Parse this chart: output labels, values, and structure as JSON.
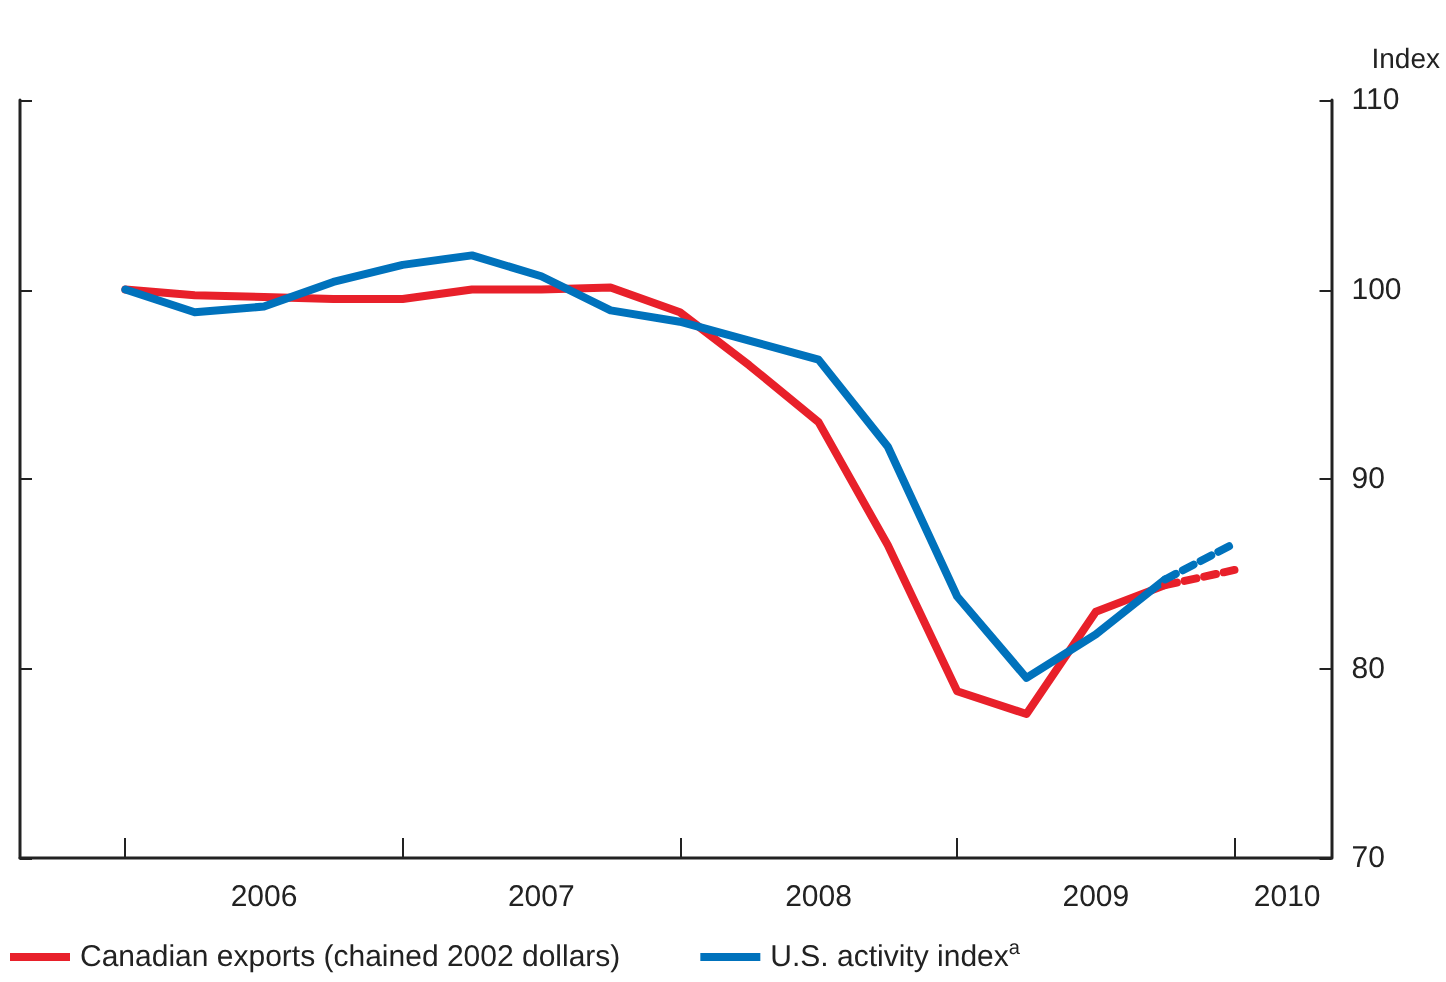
{
  "chart_data": {
    "type": "line",
    "ylabel": "Index",
    "x": [
      2006,
      2006.25,
      2006.5,
      2006.75,
      2007,
      2007.25,
      2007.5,
      2007.75,
      2008,
      2008.25,
      2008.5,
      2008.75,
      2009,
      2009.25,
      2009.5,
      2009.75,
      2010
    ],
    "series": [
      {
        "name": "Canadian exports (chained 2002 dollars)",
        "color": "#e8202a",
        "line_style": "solid",
        "values": [
          100,
          99.7,
          99.6,
          99.5,
          99.5,
          100,
          100,
          100.1,
          98.8,
          96,
          93,
          86.5,
          78.8,
          77.6,
          83,
          84.4,
          null
        ]
      },
      {
        "name": "U.S. activity index$^{a}$",
        "color": "#0072bc",
        "line_style": "solid",
        "values": [
          100,
          98.8,
          99.1,
          100.4,
          101.3,
          101.8,
          100.7,
          98.9,
          98.3,
          97.3,
          96.3,
          91.7,
          83.8,
          79.5,
          81.8,
          84.7,
          null
        ]
      },
      {
        "color": "#e8202a",
        "line_style": "dashed",
        "values": [
          null,
          null,
          null,
          null,
          null,
          null,
          null,
          null,
          null,
          null,
          null,
          null,
          null,
          null,
          null,
          84.4,
          85.2
        ]
      },
      {
        "color": "#0072bc",
        "line_style": "dashed",
        "values": [
          null,
          null,
          null,
          null,
          null,
          null,
          null,
          null,
          null,
          null,
          null,
          null,
          null,
          null,
          null,
          84.7,
          86.6
        ]
      }
    ],
    "xlim": [
      2005.62,
      2010.35
    ],
    "xticks": [
      {
        "value": 2006,
        "label": null
      },
      {
        "value": 2006.5,
        "label": "2006"
      },
      {
        "value": 2007,
        "label": null
      },
      {
        "value": 2007.5,
        "label": "2007"
      },
      {
        "value": 2008,
        "label": null
      },
      {
        "value": 2008.5,
        "label": "2008"
      },
      {
        "value": 2009,
        "label": null
      },
      {
        "value": 2009.5,
        "label": "2009"
      },
      {
        "value": 2010,
        "label": null
      },
      {
        "value": 2010.19,
        "label": "2010"
      }
    ],
    "ylim": [
      70,
      110
    ],
    "yticks": [
      70,
      80,
      90,
      100,
      110
    ],
    "grid": false,
    "legend": "bottom",
    "marker": "none"
  }
}
